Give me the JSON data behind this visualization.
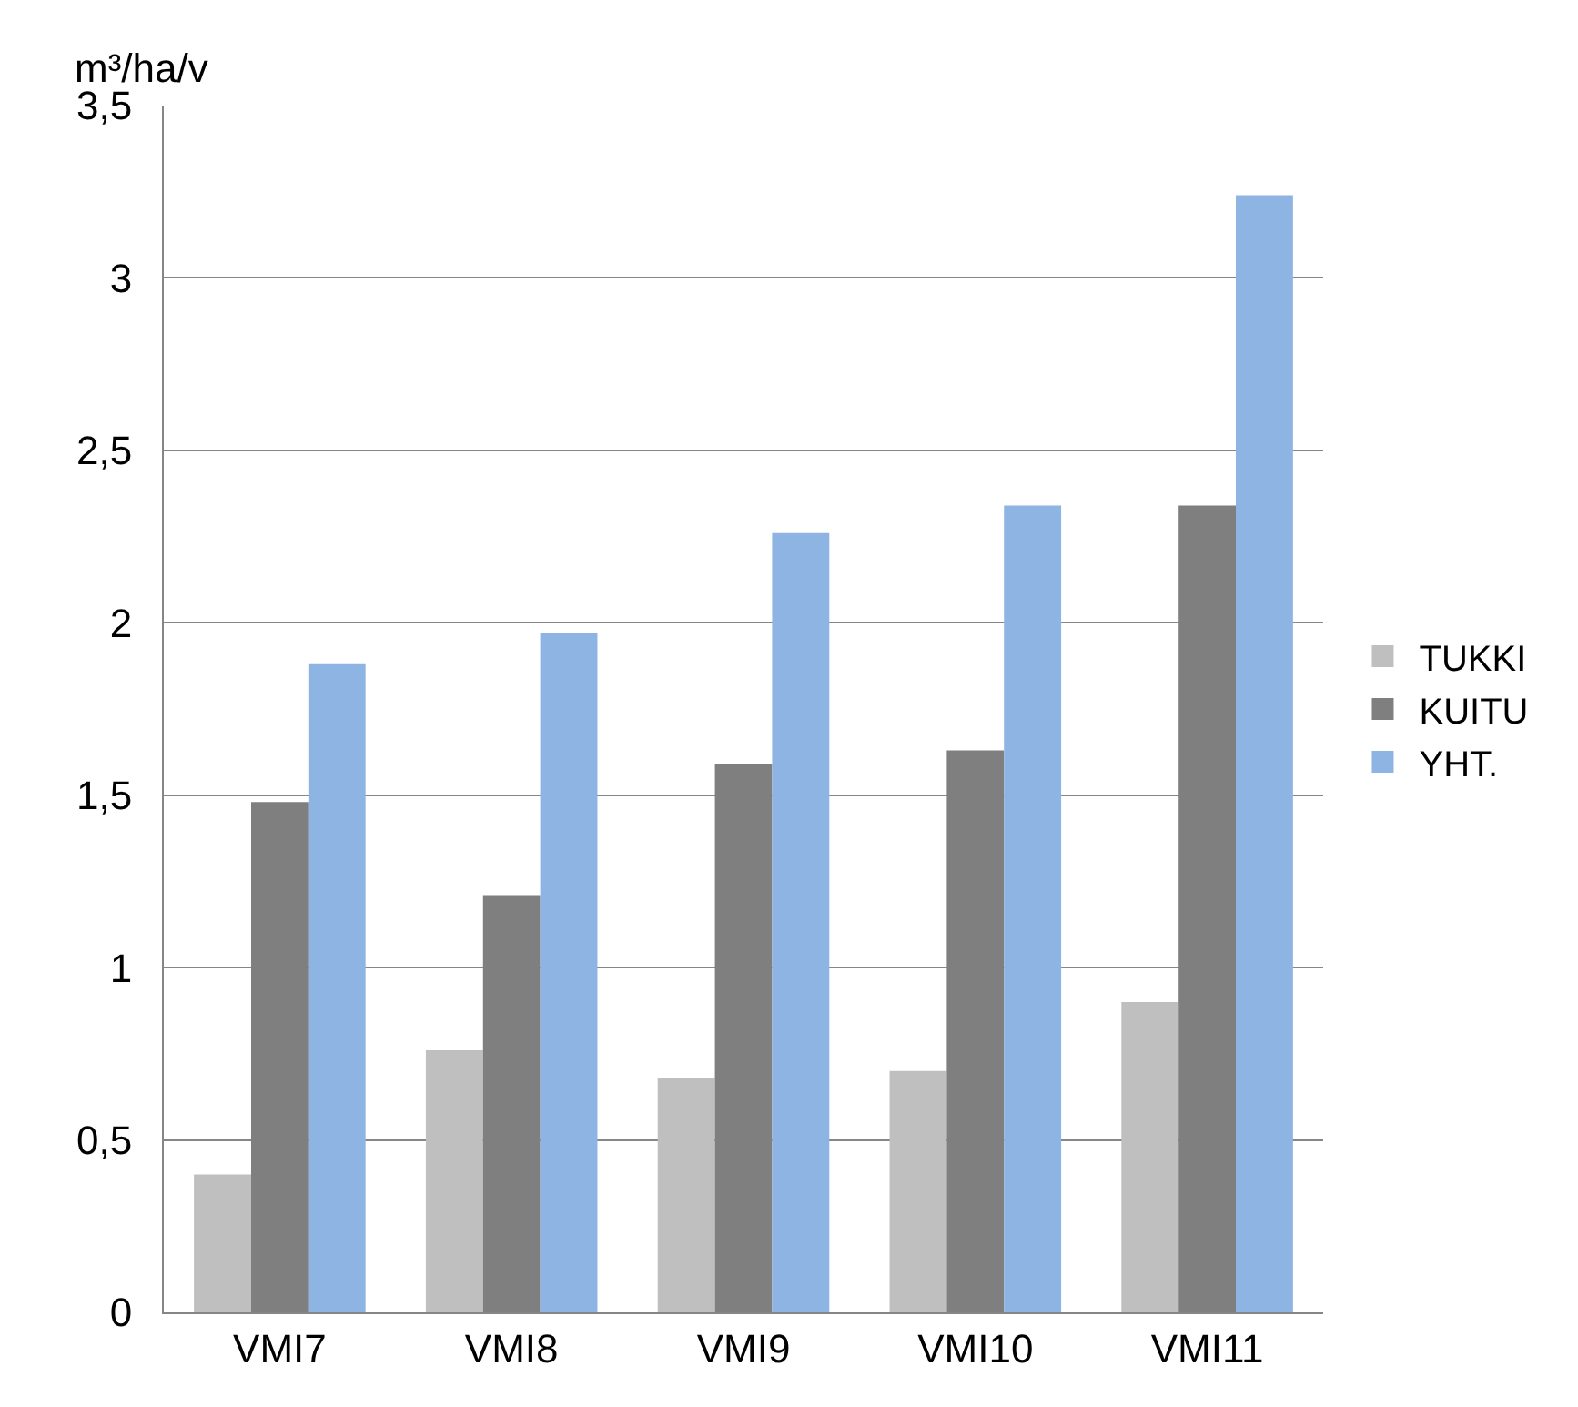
{
  "chart_data": {
    "type": "bar",
    "ylabel": "m³/ha/v",
    "categories": [
      "VMI7",
      "VMI8",
      "VMI9",
      "VMI10",
      "VMI11"
    ],
    "series": [
      {
        "name": "TUKKI",
        "color": "#bfbfbf",
        "values": [
          0.4,
          0.76,
          0.68,
          0.7,
          0.9
        ]
      },
      {
        "name": "KUITU",
        "color": "#7f7f7f",
        "values": [
          1.48,
          1.21,
          1.59,
          1.63,
          2.34
        ]
      },
      {
        "name": "YHT.",
        "color": "#8eb4e3",
        "values": [
          1.88,
          1.97,
          2.26,
          2.34,
          3.24
        ]
      }
    ],
    "ylim": [
      0,
      3.5
    ],
    "yticks": [
      0,
      {
        "value": 0.5,
        "label": "0,5"
      },
      1,
      {
        "value": 1.5,
        "label": "1,5"
      },
      2,
      {
        "value": 2.5,
        "label": "2,5"
      },
      3,
      {
        "value": 3.5,
        "label": "3,5"
      }
    ],
    "grid": "y",
    "legend": "right"
  }
}
